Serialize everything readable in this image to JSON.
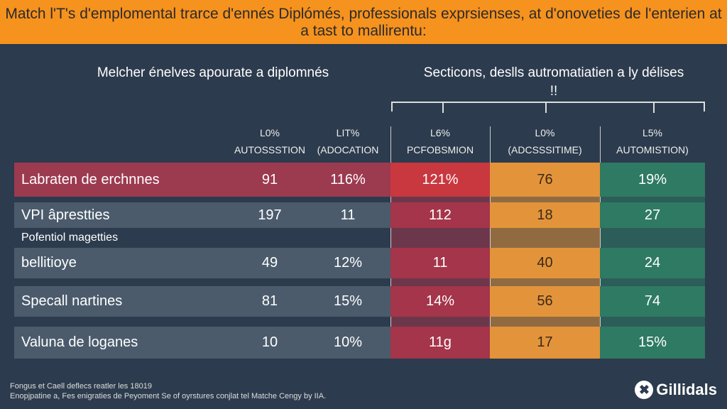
{
  "title": "Match l'T's d'emplomental trarce d'ennés Diplómés, professionals exprsienses, at d'onoveties de l'enterien at a tast to mallirentu:",
  "section_left": "Melcher énelves apourate a diplomnés",
  "section_right": "Secticons, deslls autromatiatien a ly délises !!",
  "colors": {
    "banner": "#f6921e",
    "background": "#2c3b4d",
    "row": "#4b5b6c",
    "red": "#a4354a",
    "red_highlight": "#c9383f",
    "orange": "#e3943a",
    "green": "#2f7a63"
  },
  "chart_data": {
    "type": "table",
    "columns": [
      {
        "line1": "L0%",
        "line2": "AUTOSSSTION"
      },
      {
        "line1": "LIT%",
        "line2": "(ADOCATION"
      },
      {
        "line1": "L6%",
        "line2": "PCFOBSMION"
      },
      {
        "line1": "L0%",
        "line2": "(ADCSSSITIME)"
      },
      {
        "line1": "L5%",
        "line2": "AUTOMISTION)"
      }
    ],
    "rows": [
      {
        "label": "Labraten de erchnnes",
        "values": [
          "91",
          "116%",
          "121%",
          "76",
          "19%"
        ]
      },
      {
        "label": "VPI âprestties",
        "values": [
          "197",
          "11",
          "112",
          "18",
          "27"
        ]
      },
      {
        "label": "bellitioye",
        "values": [
          "49",
          "12%",
          "11",
          "40",
          "24"
        ]
      },
      {
        "label": "Specall nartines",
        "values": [
          "81",
          "15%",
          "14%",
          "56",
          "74"
        ]
      },
      {
        "label": "Valuna de loganes",
        "values": [
          "10",
          "10%",
          "11g",
          "17",
          "15%"
        ]
      }
    ],
    "category_label": "Pofentiol magetties"
  },
  "footer": {
    "line1": "Fongus et Caell deflecs reatler les 18019",
    "line2": "Enopjpatine a, Fes enigraties de Peyoment Se of oyrstures conjlat tel Matche Cengy by IIA."
  },
  "logo": {
    "text": "Gillidals",
    "icon": "x-circle-icon"
  }
}
